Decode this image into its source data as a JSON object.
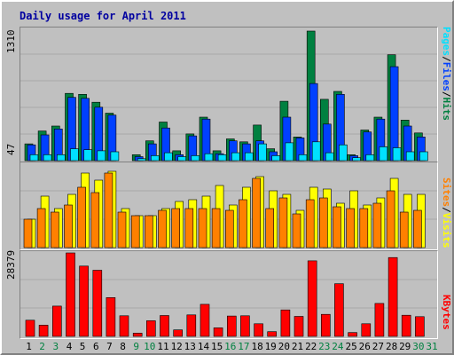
{
  "title": "Daily usage for April 2011",
  "colors": {
    "hits": "#008040",
    "files": "#0040ff",
    "pages": "#00e0ff",
    "visits": "#ffff00",
    "sites": "#ff8000",
    "kbytes": "#ff0000",
    "weekday_label": "#000000",
    "weekend_label": "#008040"
  },
  "legend": {
    "pages": "Pages",
    "files": "Files",
    "hits": "Hits",
    "sites": "Sites",
    "visits": "Visits",
    "kbytes": "KBytes",
    "separator": "/"
  },
  "chart_data": [
    {
      "type": "bar",
      "ymax_label": "1310",
      "ylim": [
        0,
        1310
      ],
      "categories": [
        "1",
        "2",
        "3",
        "4",
        "5",
        "6",
        "7",
        "8",
        "9",
        "10",
        "11",
        "12",
        "13",
        "14",
        "15",
        "16",
        "17",
        "18",
        "19",
        "20",
        "21",
        "22",
        "23",
        "24",
        "25",
        "26",
        "27",
        "28",
        "29",
        "30",
        "31"
      ],
      "series": [
        {
          "name": "Hits",
          "values": [
            170,
            300,
            350,
            680,
            670,
            590,
            480,
            0,
            60,
            200,
            390,
            100,
            270,
            440,
            100,
            220,
            190,
            360,
            120,
            600,
            240,
            1310,
            620,
            700,
            60,
            310,
            440,
            1070,
            410,
            280,
            0
          ]
        },
        {
          "name": "Files",
          "values": [
            160,
            260,
            320,
            640,
            630,
            540,
            460,
            0,
            40,
            170,
            330,
            60,
            250,
            420,
            70,
            200,
            170,
            200,
            90,
            440,
            230,
            780,
            370,
            670,
            50,
            290,
            420,
            950,
            350,
            240,
            0
          ]
        },
        {
          "name": "Pages",
          "values": [
            60,
            60,
            60,
            120,
            110,
            100,
            90,
            0,
            20,
            50,
            80,
            40,
            50,
            70,
            60,
            80,
            80,
            170,
            50,
            180,
            60,
            190,
            80,
            160,
            30,
            60,
            140,
            130,
            90,
            90,
            0
          ]
        }
      ]
    },
    {
      "type": "bar",
      "ymax_label": "47",
      "ylim": [
        0,
        47
      ],
      "categories": [
        "1",
        "2",
        "3",
        "4",
        "5",
        "6",
        "7",
        "8",
        "9",
        "10",
        "11",
        "12",
        "13",
        "14",
        "15",
        "16",
        "17",
        "18",
        "19",
        "20",
        "21",
        "22",
        "23",
        "24",
        "25",
        "26",
        "27",
        "28",
        "29",
        "30",
        "31"
      ],
      "series": [
        {
          "name": "Visits",
          "values": [
            16,
            29,
            22,
            30,
            42,
            38,
            43,
            22,
            18,
            18,
            22,
            26,
            27,
            29,
            35,
            24,
            34,
            40,
            32,
            30,
            21,
            34,
            33,
            25,
            32,
            24,
            28,
            39,
            30,
            30,
            0
          ]
        },
        {
          "name": "Sites",
          "values": [
            16,
            22,
            20,
            24,
            34,
            31,
            42,
            20,
            18,
            18,
            21,
            22,
            22,
            22,
            22,
            21,
            27,
            39,
            22,
            28,
            19,
            27,
            28,
            23,
            22,
            22,
            25,
            32,
            20,
            21,
            0
          ]
        }
      ]
    },
    {
      "type": "bar",
      "ymax_label": "28379",
      "ylim": [
        0,
        28379
      ],
      "categories": [
        "1",
        "2",
        "3",
        "4",
        "5",
        "6",
        "7",
        "8",
        "9",
        "10",
        "11",
        "12",
        "13",
        "14",
        "15",
        "16",
        "17",
        "18",
        "19",
        "20",
        "21",
        "22",
        "23",
        "24",
        "25",
        "26",
        "27",
        "28",
        "29",
        "30",
        "31"
      ],
      "series": [
        {
          "name": "KBytes",
          "values": [
            5500,
            3800,
            10300,
            28379,
            23900,
            22500,
            13200,
            7000,
            1100,
            5300,
            7100,
            2200,
            7300,
            10900,
            2900,
            6900,
            7000,
            4300,
            1600,
            9000,
            6800,
            25700,
            7500,
            17900,
            1300,
            4300,
            11200,
            26800,
            7200,
            6700,
            0
          ]
        }
      ]
    }
  ],
  "day_labels": [
    "1",
    "2",
    "3",
    "4",
    "5",
    "6",
    "7",
    "8",
    "9",
    "10",
    "11",
    "12",
    "13",
    "14",
    "15",
    "16",
    "17",
    "18",
    "19",
    "20",
    "21",
    "22",
    "23",
    "24",
    "25",
    "26",
    "27",
    "28",
    "29",
    "30",
    "31"
  ],
  "weekend_days": [
    "2",
    "3",
    "9",
    "10",
    "16",
    "17",
    "23",
    "24",
    "30",
    "31"
  ]
}
